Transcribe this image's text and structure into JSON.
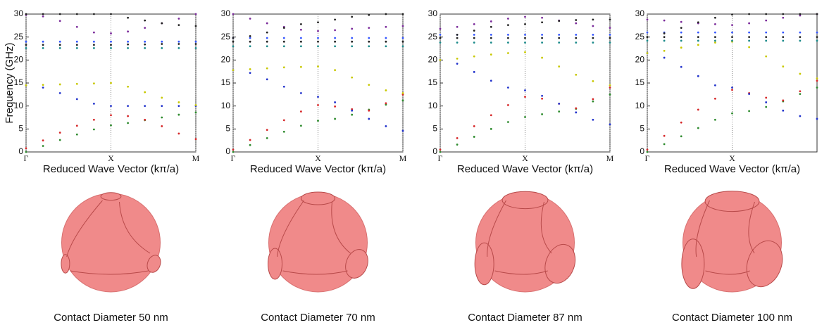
{
  "chart_data": [
    {
      "type": "line",
      "ylabel": "Frequency (GHz)",
      "xlabel": "Reduced Wave Vector (kπ/a)",
      "caption": "Contact Diameter 50 nm",
      "xlim": [
        0,
        1
      ],
      "ylim": [
        0,
        30
      ],
      "yticks": [
        0,
        5,
        10,
        15,
        20,
        25,
        30
      ],
      "xticks": [
        {
          "value": 0,
          "label": "Γ"
        },
        {
          "value": 0.5,
          "label": "X"
        },
        {
          "value": 1,
          "label": "M"
        }
      ],
      "xgrid": true,
      "x": [
        0,
        0.1,
        0.2,
        0.3,
        0.4,
        0.5,
        0.6,
        0.7,
        0.8,
        0.9,
        1
      ],
      "series": [
        {
          "color": "#2e8b2e",
          "values": [
            0,
            1.3,
            2.6,
            3.8,
            4.9,
            5.8,
            6.3,
            6.9,
            7.5,
            8.1,
            8.6
          ]
        },
        {
          "color": "#d62728",
          "values": [
            0.8,
            2.5,
            4.2,
            5.7,
            7.0,
            8.0,
            7.8,
            7.0,
            5.6,
            4.0,
            2.8
          ]
        },
        {
          "color": "#2233cc",
          "values": [
            14.5,
            14.0,
            12.8,
            11.5,
            10.5,
            10.0,
            10.0,
            10.0,
            10.0,
            10.0,
            10.0
          ]
        },
        {
          "color": "#c8c800",
          "values": [
            14.5,
            14.6,
            14.7,
            14.8,
            14.9,
            15.0,
            14.2,
            13.0,
            11.8,
            10.8,
            10.2
          ]
        },
        {
          "color": "#1a8a8a",
          "values": [
            22.6,
            22.6,
            22.6,
            22.6,
            22.6,
            22.6,
            22.6,
            22.6,
            22.6,
            22.6,
            22.6
          ]
        },
        {
          "color": "#222222",
          "values": [
            23.3,
            23.3,
            23.3,
            23.3,
            23.3,
            23.3,
            23.4,
            23.4,
            23.5,
            23.5,
            23.5
          ]
        },
        {
          "color": "#3355ff",
          "values": [
            24.0,
            24.0,
            24.0,
            24.0,
            24.0,
            24.0,
            24.0,
            24.0,
            24.0,
            24.0,
            24.0
          ]
        },
        {
          "color": "#7a2a9a",
          "values": [
            29.8,
            29.5,
            28.5,
            27.2,
            26.0,
            25.8,
            26.2,
            27.0,
            28.0,
            29.0,
            30.0
          ]
        },
        {
          "color": "#222222",
          "values": [
            30.0,
            30.0,
            30.0,
            30.0,
            30.0,
            30.0,
            29.2,
            28.6,
            28.0,
            27.6,
            27.4
          ]
        }
      ]
    },
    {
      "type": "line",
      "xlabel": "Reduced Wave Vector (kπ/a)",
      "caption": "Contact Diameter 70 nm",
      "xlim": [
        0,
        1
      ],
      "ylim": [
        0,
        30
      ],
      "yticks": [
        0,
        5,
        10,
        15,
        20,
        25,
        30
      ],
      "xticks": [
        {
          "value": 0,
          "label": "Γ"
        },
        {
          "value": 0.5,
          "label": "X"
        },
        {
          "value": 1,
          "label": "M"
        }
      ],
      "xgrid": true,
      "x": [
        0,
        0.1,
        0.2,
        0.3,
        0.4,
        0.5,
        0.6,
        0.7,
        0.8,
        0.9,
        1
      ],
      "series": [
        {
          "color": "#2e8b2e",
          "values": [
            0,
            1.5,
            3.0,
            4.4,
            5.7,
            6.8,
            7.2,
            8.1,
            9.2,
            10.3,
            11.2
          ]
        },
        {
          "color": "#d62728",
          "values": [
            0.5,
            2.6,
            4.8,
            6.9,
            8.8,
            10.2,
            9.9,
            9.3,
            9.0,
            10.6,
            12.5
          ]
        },
        {
          "color": "#2233cc",
          "values": [
            17.8,
            17.2,
            15.8,
            14.2,
            12.8,
            12.0,
            10.8,
            9.0,
            7.2,
            5.6,
            4.6
          ]
        },
        {
          "color": "#c8c800",
          "values": [
            17.8,
            18.0,
            18.2,
            18.4,
            18.5,
            18.6,
            17.8,
            16.2,
            14.6,
            13.4,
            12.8
          ]
        },
        {
          "color": "#1a8a8a",
          "values": [
            23.0,
            23.0,
            23.0,
            23.0,
            23.0,
            23.0,
            23.0,
            23.0,
            23.0,
            23.0,
            23.0
          ]
        },
        {
          "color": "#222222",
          "values": [
            24.0,
            24.0,
            24.0,
            24.0,
            24.0,
            24.0,
            24.0,
            24.0,
            24.0,
            24.0,
            24.0
          ]
        },
        {
          "color": "#3355ff",
          "values": [
            24.8,
            24.8,
            24.8,
            24.8,
            24.8,
            24.8,
            24.8,
            24.8,
            24.8,
            24.8,
            24.8
          ]
        },
        {
          "color": "#7a2a9a",
          "values": [
            30.0,
            29.0,
            28.0,
            27.2,
            26.6,
            26.3,
            26.5,
            26.8,
            27.0,
            27.2,
            27.4
          ]
        },
        {
          "color": "#222222",
          "values": [
            24.8,
            25.2,
            26.0,
            27.0,
            27.8,
            28.2,
            28.8,
            29.4,
            29.8,
            30.0,
            30.0
          ]
        }
      ]
    },
    {
      "type": "line",
      "xlabel": "Reduced Wave Vector (kπ/a)",
      "caption": "Contact Diameter 87 nm",
      "xlim": [
        0,
        1
      ],
      "ylim": [
        0,
        30
      ],
      "yticks": [
        0,
        5,
        10,
        15,
        20,
        25,
        30
      ],
      "xticks": [
        {
          "value": 0,
          "label": "Γ"
        },
        {
          "value": 0.5,
          "label": "X"
        },
        {
          "value": 1,
          "label": "M"
        }
      ],
      "xgrid": true,
      "x": [
        0,
        0.1,
        0.2,
        0.3,
        0.4,
        0.5,
        0.6,
        0.7,
        0.8,
        0.9,
        1
      ],
      "series": [
        {
          "color": "#2e8b2e",
          "values": [
            0,
            1.6,
            3.3,
            5.0,
            6.5,
            7.6,
            8.2,
            8.8,
            9.4,
            11.0,
            12.5
          ]
        },
        {
          "color": "#d62728",
          "values": [
            0.5,
            3.0,
            5.6,
            8.0,
            10.2,
            12.0,
            11.6,
            10.5,
            9.5,
            11.5,
            14.0
          ]
        },
        {
          "color": "#2233cc",
          "values": [
            20.0,
            19.2,
            17.4,
            15.5,
            14.0,
            13.4,
            12.2,
            10.5,
            8.6,
            7.0,
            6.0
          ]
        },
        {
          "color": "#c8c800",
          "values": [
            20.0,
            20.3,
            20.8,
            21.2,
            21.5,
            21.7,
            20.5,
            18.6,
            16.8,
            15.4,
            14.5
          ]
        },
        {
          "color": "#1a8a8a",
          "values": [
            23.8,
            23.8,
            23.8,
            23.8,
            23.8,
            23.8,
            23.8,
            23.8,
            23.8,
            23.8,
            23.8
          ]
        },
        {
          "color": "#222222",
          "values": [
            24.8,
            24.8,
            24.8,
            24.8,
            24.8,
            24.8,
            24.8,
            24.8,
            24.8,
            24.8,
            24.8
          ]
        },
        {
          "color": "#3355ff",
          "values": [
            25.5,
            25.5,
            25.5,
            25.5,
            25.5,
            25.5,
            25.5,
            25.5,
            25.5,
            25.5,
            25.5
          ]
        },
        {
          "color": "#7a2a9a",
          "values": [
            26.8,
            27.2,
            27.8,
            28.4,
            29.0,
            29.4,
            29.2,
            28.6,
            28.0,
            27.4,
            27.0
          ]
        },
        {
          "color": "#222222",
          "values": [
            24.8,
            25.5,
            26.4,
            27.2,
            27.6,
            27.8,
            28.2,
            28.5,
            28.7,
            28.8,
            28.8
          ]
        }
      ]
    },
    {
      "type": "line",
      "xlabel": "Reduced Wave Vector (kπ/a)",
      "caption": "Contact Diameter 100 nm",
      "xlim": [
        0,
        1
      ],
      "ylim": [
        0,
        30
      ],
      "yticks": [
        0,
        5,
        10,
        15,
        20,
        25,
        30
      ],
      "xticks": [
        {
          "value": 0,
          "label": "Γ"
        },
        {
          "value": 0.5,
          "label": "X"
        }
      ],
      "xgrid": true,
      "x": [
        0,
        0.1,
        0.2,
        0.3,
        0.4,
        0.5,
        0.6,
        0.7,
        0.8,
        0.9,
        1
      ],
      "series": [
        {
          "color": "#2e8b2e",
          "values": [
            0,
            1.7,
            3.4,
            5.2,
            7.0,
            8.4,
            8.9,
            9.8,
            11.0,
            12.6,
            14.0
          ]
        },
        {
          "color": "#d62728",
          "values": [
            0.5,
            3.5,
            6.4,
            9.2,
            11.6,
            13.5,
            12.8,
            11.8,
            11.2,
            13.2,
            15.5
          ]
        },
        {
          "color": "#2233cc",
          "values": [
            21.5,
            20.5,
            18.5,
            16.5,
            14.5,
            14.0,
            12.6,
            10.8,
            9.0,
            7.8,
            7.2
          ]
        },
        {
          "color": "#c8c800",
          "values": [
            21.5,
            22.0,
            22.7,
            23.3,
            23.8,
            24.0,
            22.8,
            20.8,
            18.6,
            17.0,
            16.0
          ]
        },
        {
          "color": "#1a8a8a",
          "values": [
            24.2,
            24.2,
            24.2,
            24.2,
            24.2,
            24.2,
            24.2,
            24.2,
            24.2,
            24.2,
            24.2
          ]
        },
        {
          "color": "#222222",
          "values": [
            25.0,
            25.0,
            25.0,
            25.0,
            25.0,
            25.0,
            25.0,
            25.0,
            25.0,
            25.0,
            25.0
          ]
        },
        {
          "color": "#3355ff",
          "values": [
            26.0,
            26.0,
            26.0,
            26.0,
            26.0,
            26.0,
            26.0,
            26.0,
            26.0,
            26.0,
            26.0
          ]
        },
        {
          "color": "#7a2a9a",
          "values": [
            28.8,
            28.6,
            28.3,
            28.0,
            27.8,
            27.6,
            28.0,
            28.6,
            29.2,
            29.7,
            30.0
          ]
        },
        {
          "color": "#222222",
          "values": [
            25.0,
            25.8,
            27.0,
            28.2,
            29.2,
            29.9,
            30.0,
            30.0,
            30.0,
            30.0,
            30.0
          ]
        }
      ]
    }
  ]
}
